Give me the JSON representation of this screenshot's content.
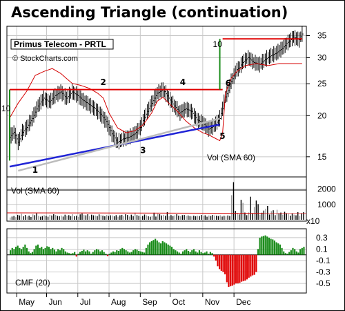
{
  "page": {
    "title": "Ascending Triangle (continuation)",
    "symbol_label": "Primus Telecom - PRTL",
    "copyright": "© StockCharts.com"
  },
  "colors": {
    "resistance": "#e00000",
    "support": "#1f23d6",
    "trendline_gray": "#bcbcbc",
    "volume_sma": "#d40000",
    "breakout_marker": "#1a8c1a",
    "cmf_positive": "#1a8c1a",
    "cmf_negative": "#e00000",
    "volume_up": "#000000",
    "volume_down": "#9a9a9a",
    "grid": "#c8c8c8"
  },
  "chart_data": [
    {
      "type": "bar",
      "panel": "price",
      "title": "Primus Telecom - PRTL",
      "scale": "log",
      "ylim": [
        12,
        37
      ],
      "y_ticks": [
        15,
        20,
        25,
        30,
        35
      ],
      "x_months": [
        "May",
        "Jun",
        "Jul",
        "Aug",
        "Sep",
        "Oct",
        "Nov",
        "Dec"
      ],
      "price_series": [
        [
          0,
          17.2
        ],
        [
          3,
          17.8
        ],
        [
          6,
          16.6
        ],
        [
          9,
          17.8
        ],
        [
          12,
          18.4
        ],
        [
          16,
          19.6
        ],
        [
          20,
          21.4
        ],
        [
          24,
          22.6
        ],
        [
          28,
          22.0
        ],
        [
          32,
          23.0
        ],
        [
          36,
          23.6
        ],
        [
          40,
          22.6
        ],
        [
          44,
          23.6
        ],
        [
          48,
          23.0
        ],
        [
          52,
          22.2
        ],
        [
          56,
          21.6
        ],
        [
          60,
          21.0
        ],
        [
          64,
          20.2
        ],
        [
          68,
          19.2
        ],
        [
          72,
          17.6
        ],
        [
          76,
          16.6
        ],
        [
          80,
          17.0
        ],
        [
          84,
          17.2
        ],
        [
          88,
          17.6
        ],
        [
          92,
          18.4
        ],
        [
          96,
          20.2
        ],
        [
          100,
          21.8
        ],
        [
          104,
          23.4
        ],
        [
          108,
          24.0
        ],
        [
          112,
          22.6
        ],
        [
          116,
          21.4
        ],
        [
          120,
          20.4
        ],
        [
          124,
          21.0
        ],
        [
          128,
          20.6
        ],
        [
          132,
          19.4
        ],
        [
          136,
          19.0
        ],
        [
          140,
          18.2
        ],
        [
          144,
          18.6
        ],
        [
          148,
          19.6
        ],
        [
          150,
          21.0
        ],
        [
          152,
          22.8
        ],
        [
          154,
          23.8
        ],
        [
          156,
          25.4
        ],
        [
          158,
          26.4
        ],
        [
          160,
          27.6
        ],
        [
          162,
          28.0
        ],
        [
          164,
          29.0
        ],
        [
          168,
          30.0
        ],
        [
          172,
          29.0
        ],
        [
          176,
          28.6
        ],
        [
          180,
          29.6
        ],
        [
          184,
          30.4
        ],
        [
          188,
          31.0
        ],
        [
          192,
          32.0
        ],
        [
          196,
          33.4
        ],
        [
          200,
          34.6
        ],
        [
          204,
          34.0
        ],
        [
          206,
          35.4
        ]
      ],
      "resistance_level": 24.0,
      "support_line": [
        [
          0,
          14.0
        ],
        [
          148,
          18.8
        ]
      ],
      "gray_trendline": [
        [
          6,
          13.6
        ],
        [
          148,
          19.6
        ]
      ],
      "breakout_moves": [
        {
          "from": 14.6,
          "to": 24.0,
          "label": "10"
        },
        {
          "from": 24.0,
          "to": 34.2,
          "label": "10"
        }
      ],
      "pivot_labels": [
        "1",
        "2",
        "3",
        "4",
        "5",
        "6"
      ],
      "annotation": "Vol (SMA 60)",
      "volume_sma_series": [
        [
          0,
          45
        ],
        [
          6,
          60
        ],
        [
          12,
          72
        ],
        [
          18,
          88
        ],
        [
          24,
          92
        ],
        [
          30,
          95
        ],
        [
          36,
          90
        ],
        [
          40,
          85
        ],
        [
          44,
          80
        ],
        [
          50,
          78
        ],
        [
          56,
          75
        ],
        [
          62,
          70
        ],
        [
          66,
          65
        ],
        [
          70,
          50
        ],
        [
          76,
          35
        ],
        [
          82,
          30
        ],
        [
          88,
          32
        ],
        [
          94,
          38
        ],
        [
          100,
          50
        ],
        [
          104,
          62
        ],
        [
          108,
          66
        ],
        [
          112,
          60
        ],
        [
          118,
          52
        ],
        [
          124,
          42
        ],
        [
          130,
          35
        ],
        [
          136,
          30
        ],
        [
          140,
          28
        ],
        [
          144,
          25
        ],
        [
          148,
          22
        ],
        [
          150,
          30
        ],
        [
          152,
          70
        ],
        [
          156,
          85
        ],
        [
          160,
          92
        ],
        [
          166,
          98
        ],
        [
          174,
          100
        ],
        [
          182,
          98
        ],
        [
          190,
          100
        ],
        [
          198,
          100
        ],
        [
          206,
          100
        ]
      ]
    },
    {
      "type": "bar",
      "panel": "volume",
      "title": "Vol (SMA 60)",
      "y_ticks": [
        1000,
        2000
      ],
      "unit_label": "x10",
      "ylim": [
        0,
        2700
      ],
      "values": [
        150,
        210,
        250,
        170,
        320,
        280,
        390,
        230,
        310,
        210,
        270,
        180,
        350,
        300,
        420,
        260,
        200,
        240,
        300,
        260,
        200,
        320,
        280,
        360,
        310,
        250,
        230,
        280,
        210,
        330,
        260,
        300,
        240,
        360,
        230,
        270,
        190,
        350,
        410,
        310,
        290,
        360,
        240,
        330,
        290,
        280,
        240,
        350,
        300,
        270,
        230,
        310,
        250,
        290,
        280,
        230,
        300,
        200,
        290,
        320,
        240,
        360,
        310,
        210,
        330,
        240,
        460,
        300,
        260,
        200,
        250,
        340,
        290,
        230,
        200,
        260,
        460,
        210,
        390,
        360,
        280,
        320,
        260,
        500,
        230,
        300,
        250,
        290,
        360,
        270,
        230,
        300,
        310,
        250,
        280,
        240,
        220,
        270,
        230,
        260,
        240,
        310,
        260,
        290,
        200,
        280,
        250,
        310,
        280,
        270,
        240,
        290,
        210,
        260,
        230,
        280,
        250,
        1600,
        2450,
        580,
        440,
        350,
        1300,
        1100,
        470,
        300,
        480,
        1500,
        390,
        830,
        1250,
        1020,
        330,
        460,
        600,
        720,
        900,
        340,
        560,
        620,
        300,
        650,
        410,
        470,
        330,
        520,
        430,
        380,
        270,
        410,
        330,
        290,
        500,
        260,
        430,
        500
      ]
    },
    {
      "type": "bar",
      "panel": "cmf",
      "title": "CMF (20)",
      "y_ticks": [
        0.3,
        0.1,
        -0.1,
        -0.3,
        -0.5
      ],
      "ylim": [
        -0.62,
        0.42
      ],
      "values": [
        0.08,
        0.12,
        0.1,
        0.14,
        0.16,
        0.12,
        0.1,
        0.14,
        0.18,
        0.12,
        0.06,
        0.03,
        0.05,
        0.1,
        0.16,
        0.18,
        0.12,
        0.14,
        0.1,
        0.12,
        0.15,
        0.14,
        0.1,
        0.12,
        0.09,
        0.06,
        0.1,
        0.08,
        0.12,
        0.1,
        0.06,
        0.04,
        0.03,
        0.02,
        0.03,
        0.05,
        -0.03,
        0.02,
        0.05,
        0.07,
        0.09,
        0.06,
        0.08,
        0.06,
        0.02,
        0.05,
        0.08,
        0.1,
        0.09,
        0.06,
        0.08,
        0.05,
        0.02,
        -0.02,
        0.02,
        0.04,
        0.06,
        0.05,
        0.08,
        0.07,
        0.1,
        0.12,
        0.1,
        0.08,
        0.06,
        0.04,
        0.05,
        0.08,
        0.1,
        0.09,
        0.07,
        0.06,
        0.05,
        0.04,
        0.12,
        0.18,
        0.22,
        0.24,
        0.26,
        0.28,
        0.25,
        0.22,
        0.2,
        0.24,
        0.22,
        0.2,
        0.18,
        0.16,
        0.14,
        0.1,
        0.08,
        0.06,
        0.04,
        0.02,
        0.06,
        0.08,
        0.1,
        0.07,
        0.05,
        0.08,
        0.1,
        0.06,
        0.04,
        0.08,
        0.05,
        0.03,
        0.04,
        0.06,
        0.02,
        0.05,
        0.03,
        -0.03,
        -0.1,
        -0.2,
        -0.25,
        -0.28,
        -0.3,
        -0.34,
        -0.48,
        -0.56,
        -0.55,
        -0.54,
        -0.52,
        -0.5,
        -0.5,
        -0.49,
        -0.47,
        -0.46,
        -0.45,
        -0.43,
        -0.4,
        -0.38,
        -0.36,
        -0.35,
        -0.3,
        0.1,
        0.3,
        0.32,
        0.33,
        0.34,
        0.32,
        0.3,
        0.28,
        0.27,
        0.25,
        0.22,
        0.2,
        0.18,
        0.12,
        0.06,
        0.03,
        0.02,
        0.05,
        0.08,
        0.12,
        0.1,
        0.06,
        0.04,
        0.1,
        0.12,
        0.14
      ]
    }
  ]
}
